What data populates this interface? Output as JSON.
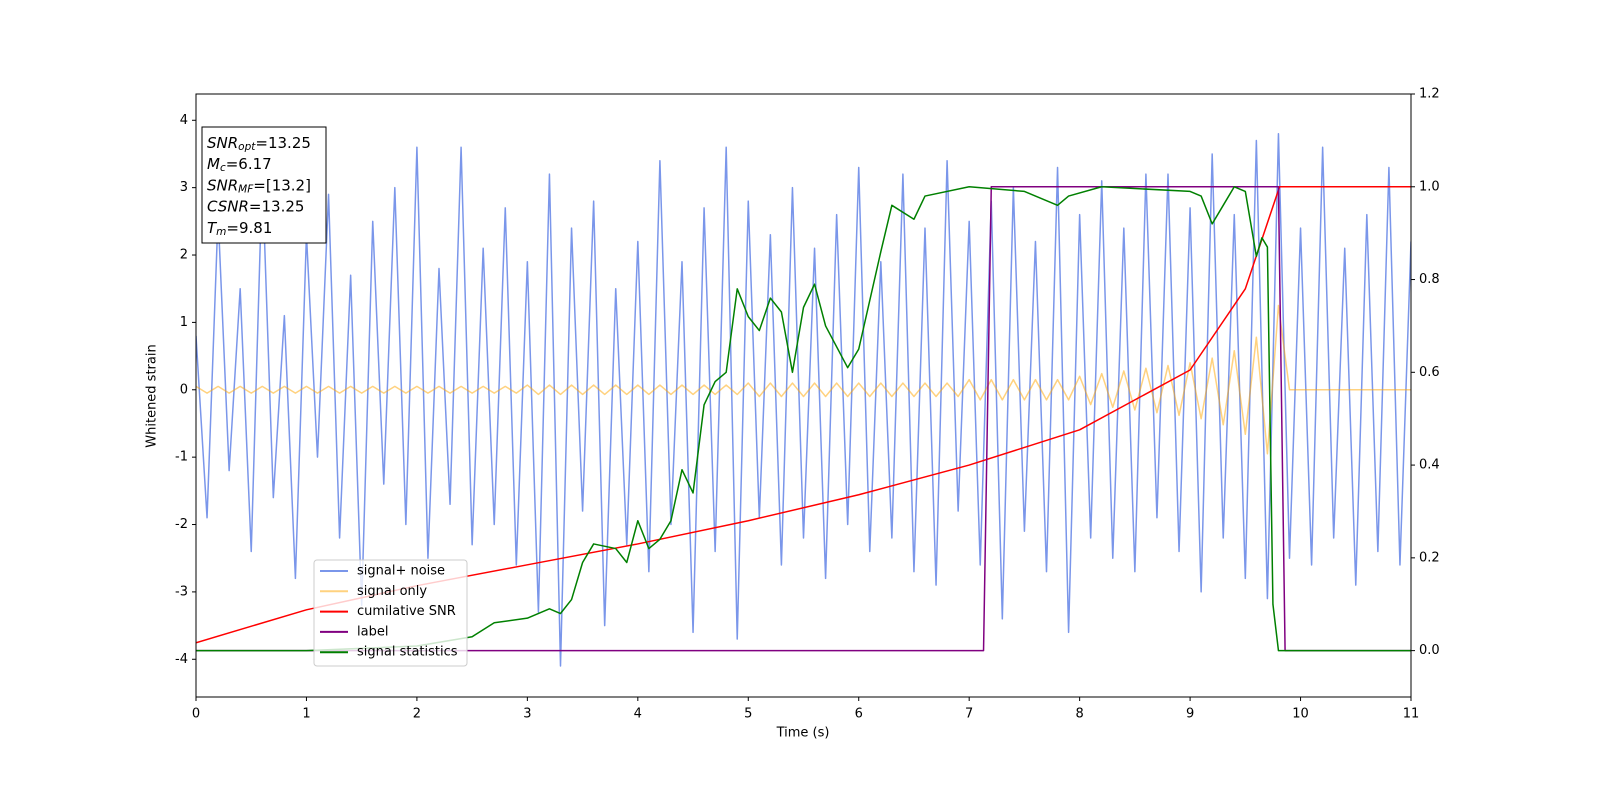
{
  "chart_data": {
    "type": "line",
    "xlabel": "Time (s)",
    "ylabel": "Whitened strain",
    "xlim": [
      0,
      11
    ],
    "xticks": [
      0,
      1,
      2,
      3,
      4,
      5,
      6,
      7,
      8,
      9,
      10,
      11
    ],
    "ylim": [
      -4.56,
      4.39
    ],
    "yticks": [
      -4,
      -3,
      -2,
      -1,
      0,
      1,
      2,
      3,
      4
    ],
    "y2lim": [
      -0.1,
      1.2
    ],
    "y2ticks": [
      {
        "value": 0,
        "label": "0.0"
      },
      {
        "value": 0.2,
        "label": "0.2"
      },
      {
        "value": 0.4,
        "label": "0.4"
      },
      {
        "value": 0.6,
        "label": "0.6"
      },
      {
        "value": 0.8,
        "label": "0.8"
      },
      {
        "value": 1,
        "label": "1.0"
      },
      {
        "value": 1.2,
        "label": "1.2"
      }
    ],
    "legend": "lower left",
    "x": [
      0,
      0.1,
      0.2,
      0.3,
      0.4,
      0.5,
      0.6,
      0.7,
      0.8,
      0.9,
      1,
      1.1,
      1.2,
      1.3,
      1.4,
      1.5,
      1.6,
      1.7,
      1.8,
      1.9,
      2,
      2.1,
      2.2,
      2.3,
      2.4,
      2.5,
      2.6,
      2.7,
      2.8,
      2.9,
      3,
      3.1,
      3.2,
      3.3,
      3.4,
      3.5,
      3.6,
      3.7,
      3.8,
      3.9,
      4,
      4.1,
      4.2,
      4.3,
      4.4,
      4.5,
      4.6,
      4.7,
      4.8,
      4.9,
      5,
      5.1,
      5.2,
      5.3,
      5.4,
      5.5,
      5.6,
      5.7,
      5.8,
      5.9,
      6,
      6.1,
      6.2,
      6.3,
      6.4,
      6.5,
      6.6,
      6.7,
      6.8,
      6.9,
      7,
      7.1,
      7.2,
      7.3,
      7.4,
      7.5,
      7.6,
      7.7,
      7.8,
      7.9,
      8,
      8.1,
      8.2,
      8.3,
      8.4,
      8.5,
      8.6,
      8.7,
      8.8,
      8.9,
      9,
      9.1,
      9.2,
      9.3,
      9.4,
      9.5,
      9.6,
      9.7,
      9.8,
      9.9,
      10,
      10.1,
      10.2,
      10.3,
      10.4,
      10.5,
      10.6,
      10.7,
      10.8,
      10.9,
      11
    ],
    "series": [
      {
        "name": "signal+ noise",
        "color": "#4169e1",
        "alpha": 0.7,
        "values": [
          0.8,
          -1.9,
          2.6,
          -1.2,
          1.5,
          -2.4,
          3.2,
          -1.6,
          1.1,
          -2.8,
          2.3,
          -1.0,
          2.9,
          -2.2,
          1.7,
          -3.2,
          2.5,
          -1.4,
          3.0,
          -2.0,
          3.6,
          -2.5,
          1.8,
          -1.7,
          3.6,
          -2.3,
          2.1,
          -2.0,
          2.7,
          -2.6,
          1.9,
          -3.3,
          3.2,
          -4.1,
          2.4,
          -1.8,
          2.8,
          -3.5,
          1.5,
          -2.3,
          2.2,
          -2.7,
          3.4,
          -2.0,
          1.9,
          -3.6,
          2.7,
          -2.4,
          3.6,
          -3.7,
          2.8,
          -1.9,
          2.3,
          -2.6,
          3.0,
          -2.2,
          2.1,
          -2.8,
          2.6,
          -2.0,
          3.3,
          -2.4,
          1.9,
          -2.2,
          3.2,
          -2.7,
          2.4,
          -2.9,
          3.4,
          -1.8,
          2.5,
          -2.6,
          2.8,
          -3.4,
          3.0,
          -2.1,
          2.2,
          -2.7,
          3.3,
          -3.6,
          2.6,
          -2.2,
          3.1,
          -2.5,
          2.4,
          -2.7,
          3.2,
          -1.9,
          3.2,
          -2.4,
          2.7,
          -3.0,
          3.5,
          -2.2,
          2.6,
          -2.8,
          3.7,
          -3.1,
          3.8,
          -2.5,
          2.4,
          -2.6,
          3.6,
          -2.2,
          2.1,
          -2.9,
          2.6,
          -2.4,
          3.3,
          -2.6,
          2.2
        ]
      },
      {
        "name": "signal only",
        "color": "#ffa500",
        "alpha": 0.5,
        "values": [
          0.05,
          -0.05,
          0.05,
          -0.05,
          0.05,
          -0.05,
          0.05,
          -0.05,
          0.05,
          -0.05,
          0.05,
          -0.05,
          0.05,
          -0.05,
          0.05,
          -0.05,
          0.05,
          -0.05,
          0.05,
          -0.05,
          0.05,
          -0.05,
          0.05,
          -0.05,
          0.05,
          -0.05,
          0.05,
          -0.05,
          0.05,
          -0.05,
          0.07,
          -0.07,
          0.07,
          -0.07,
          0.07,
          -0.07,
          0.07,
          -0.07,
          0.07,
          -0.07,
          0.07,
          -0.07,
          0.07,
          -0.07,
          0.07,
          -0.07,
          0.07,
          -0.07,
          0.07,
          -0.07,
          0.1,
          -0.1,
          0.1,
          -0.1,
          0.1,
          -0.1,
          0.1,
          -0.1,
          0.1,
          -0.1,
          0.1,
          -0.1,
          0.1,
          -0.1,
          0.1,
          -0.1,
          0.1,
          -0.1,
          0.1,
          -0.1,
          0.15,
          -0.15,
          0.15,
          -0.15,
          0.15,
          -0.15,
          0.15,
          -0.15,
          0.15,
          -0.15,
          0.2,
          -0.22,
          0.24,
          -0.26,
          0.28,
          -0.3,
          0.32,
          -0.34,
          0.36,
          -0.38,
          0.4,
          -0.43,
          0.47,
          -0.52,
          0.58,
          -0.66,
          0.78,
          -0.95,
          1.25,
          0,
          0,
          0,
          0,
          0,
          0,
          0,
          0,
          0,
          0,
          0,
          0
        ]
      },
      {
        "name": "cumilative SNR",
        "color": "#ff0000",
        "axis": "y2",
        "x": [
          0,
          1,
          2,
          3,
          4,
          5,
          6,
          7,
          8,
          9,
          9.5,
          9.81,
          11
        ],
        "values": [
          0.017,
          0.088,
          0.14,
          0.185,
          0.23,
          0.28,
          0.336,
          0.4,
          0.476,
          0.605,
          0.78,
          1,
          1
        ]
      },
      {
        "name": "label",
        "color": "#800080",
        "axis": "y2",
        "x": [
          0,
          7.13,
          7.2,
          9.8,
          9.86,
          11
        ],
        "values": [
          0,
          0,
          1,
          1,
          0,
          0
        ]
      },
      {
        "name": "signal statistics",
        "color": "#008000",
        "axis": "y2",
        "x": [
          0,
          1,
          2,
          2.5,
          2.7,
          3,
          3.2,
          3.3,
          3.4,
          3.5,
          3.6,
          3.8,
          3.9,
          4,
          4.1,
          4.2,
          4.3,
          4.4,
          4.5,
          4.6,
          4.7,
          4.8,
          4.9,
          5,
          5.1,
          5.2,
          5.3,
          5.4,
          5.5,
          5.6,
          5.7,
          5.9,
          6,
          6.2,
          6.3,
          6.5,
          6.6,
          7,
          7.5,
          7.8,
          7.9,
          8.2,
          9,
          9.1,
          9.2,
          9.3,
          9.4,
          9.5,
          9.6,
          9.65,
          9.7,
          9.75,
          9.8,
          11
        ],
        "values": [
          0,
          0,
          0.01,
          0.03,
          0.06,
          0.07,
          0.09,
          0.08,
          0.11,
          0.19,
          0.23,
          0.22,
          0.19,
          0.28,
          0.22,
          0.24,
          0.28,
          0.39,
          0.34,
          0.53,
          0.58,
          0.6,
          0.78,
          0.72,
          0.69,
          0.76,
          0.73,
          0.6,
          0.74,
          0.79,
          0.7,
          0.61,
          0.65,
          0.86,
          0.96,
          0.93,
          0.98,
          1,
          0.99,
          0.96,
          0.98,
          1,
          0.99,
          0.98,
          0.92,
          0.96,
          1,
          0.99,
          0.85,
          0.89,
          0.87,
          0.1,
          0,
          0
        ]
      }
    ],
    "annotations": [
      {
        "symbol": "SNR",
        "sub": "opt",
        "value": "=13.25"
      },
      {
        "symbol": "M",
        "sub": "c",
        "value": "=6.17"
      },
      {
        "symbol": "SNR",
        "sub": "MF",
        "value": "=[13.2]"
      },
      {
        "symbol": "CSNR",
        "value": "=13.25"
      },
      {
        "symbol": "T",
        "sub": "m",
        "value": "=9.81"
      }
    ]
  }
}
